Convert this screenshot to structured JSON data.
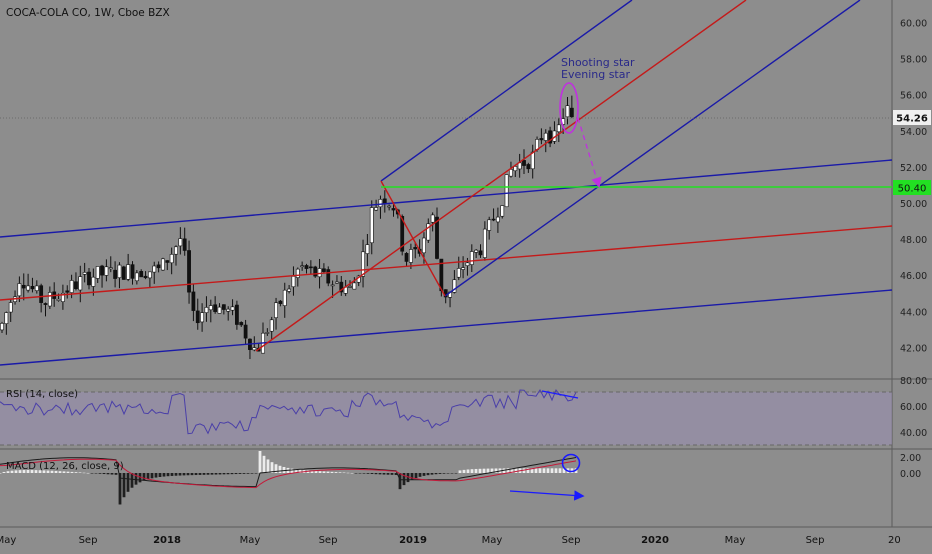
{
  "header": {
    "title": "COCA-COLA CO, 1W, Cboe BZX"
  },
  "price_panel": {
    "yticks": [
      "42.00",
      "44.00",
      "46.00",
      "48.00",
      "50.00",
      "52.00",
      "54.00",
      "56.00",
      "58.00",
      "60.00"
    ],
    "current_price": "54.26",
    "level_price": "50.40",
    "annotation_1": "Shooting star",
    "annotation_2": "Evening star"
  },
  "rsi_panel": {
    "label": "RSI (14, close)",
    "yticks": [
      "80.00",
      "60.00",
      "40.00"
    ]
  },
  "macd_panel": {
    "label": "MACD (12, 26, close, 9)",
    "yticks": [
      "2.00",
      "0.00"
    ]
  },
  "xaxis": {
    "labels": [
      "May",
      "Sep",
      "2018",
      "May",
      "Sep",
      "2019",
      "May",
      "Sep",
      "2020",
      "May",
      "Sep",
      "20"
    ]
  },
  "colors": {
    "background": "#8d8d8d",
    "channel_blue": "#1a1aa8",
    "channel_red": "#c41a1a",
    "level_green": "#22e022",
    "annotation_magenta": "#c030e0",
    "candle_up": "#ffffff",
    "candle_down": "#111111"
  },
  "chart_data": {
    "type": "candlestick",
    "title": "COCA-COLA CO, 1W, Cboe BZX",
    "ylim": [
      40.5,
      61
    ],
    "x_range": [
      "2017-05",
      "2020-12"
    ],
    "key_candles": [
      {
        "date": "2018-01-22",
        "high": 48.6,
        "low": 47.2
      },
      {
        "date": "2018-05-14",
        "low": 41.5
      },
      {
        "date": "2018-11-12",
        "high": 50.8
      },
      {
        "date": "2018-12-24",
        "low": 44.6
      },
      {
        "date": "2019-09-02",
        "high": 56.0,
        "close": 54.26
      }
    ],
    "horizontal_levels": [
      {
        "value": 50.4,
        "color": "green"
      },
      {
        "value": 54.26,
        "style": "dotted",
        "label": "last price"
      }
    ],
    "pitchfork_channels": [
      {
        "color": "blue",
        "description": "upper ascending channel line"
      },
      {
        "color": "red",
        "description": "median line"
      },
      {
        "color": "blue",
        "description": "lower ascending channel line"
      }
    ],
    "annotations": [
      "Shooting star",
      "Evening star"
    ],
    "rsi": {
      "ylim": [
        30,
        80
      ],
      "bands": [
        30,
        70
      ],
      "last_approx": 66
    },
    "macd": {
      "ylim": [
        -1.5,
        2.0
      ],
      "last_macd_approx": 1.6
    }
  }
}
